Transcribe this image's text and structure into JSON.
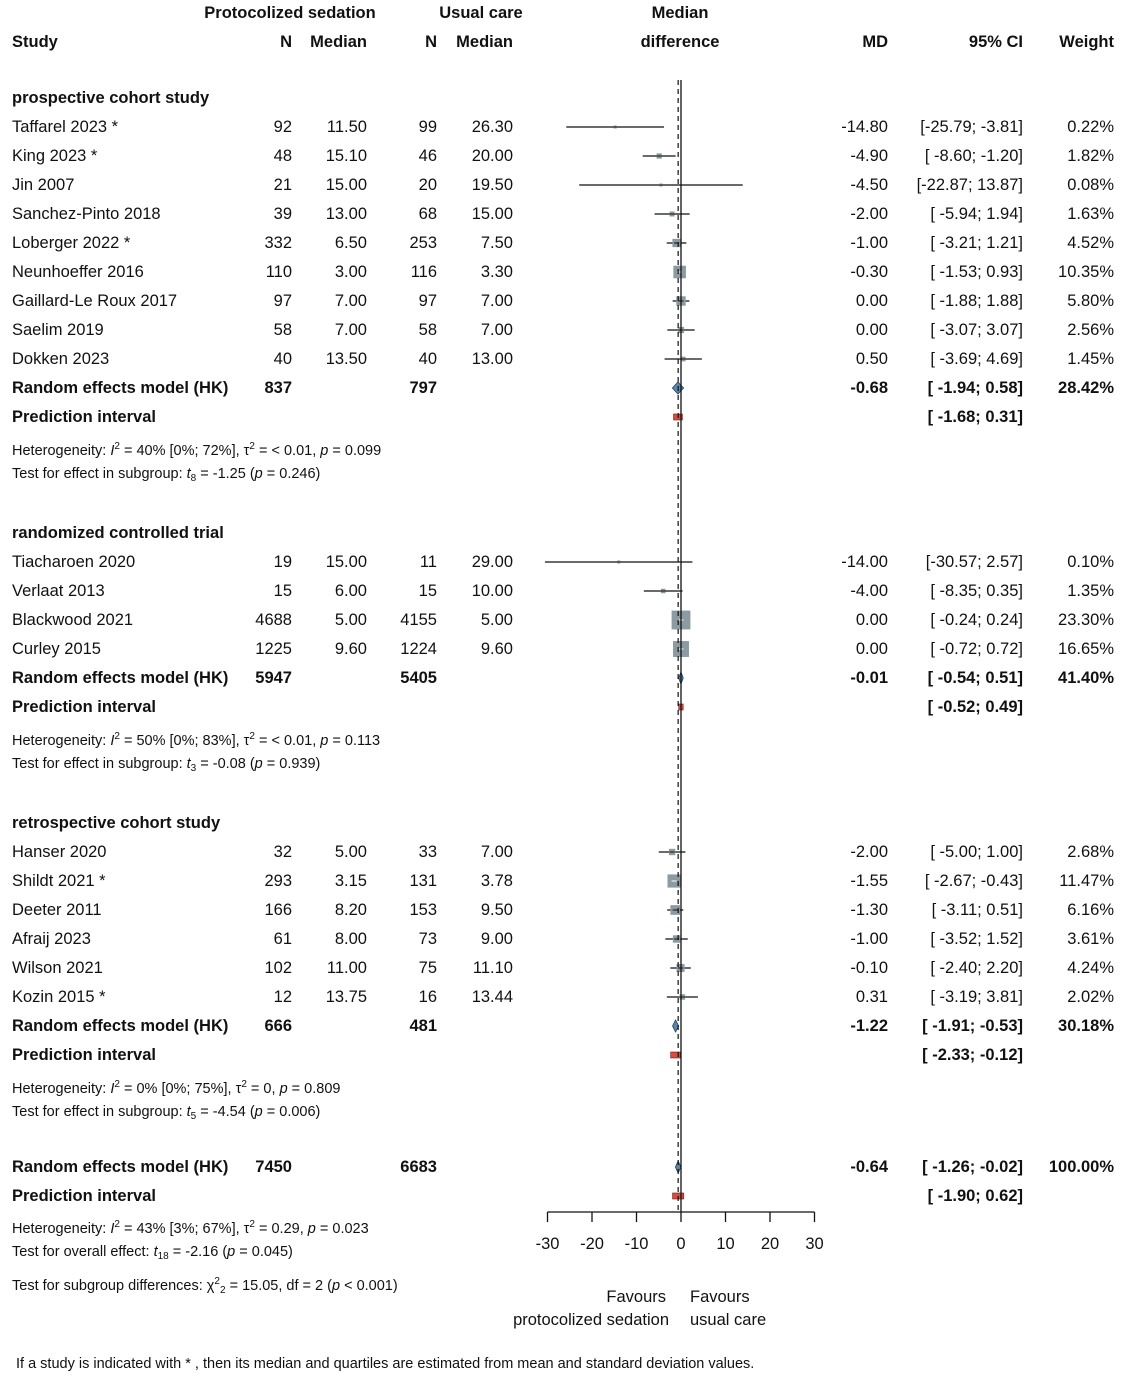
{
  "chart_data": {
    "type": "forest",
    "header": {
      "group1": "Protocolized sedation",
      "group2": "Usual care",
      "plot_line1": "Median",
      "plot_line2": "difference",
      "study": "Study",
      "n": "N",
      "median": "Median",
      "md": "MD",
      "ci": "95% CI",
      "weight": "Weight"
    },
    "axis": {
      "min": -30,
      "max": 30,
      "major": 10,
      "ticks": [
        "-30",
        "-20",
        "-10",
        "0",
        "10",
        "20",
        "30"
      ],
      "favours_left": [
        "Favours",
        "protocolized sedation"
      ],
      "favours_right": [
        "Favours",
        "usual care"
      ]
    },
    "groups": [
      {
        "name": "prospective cohort study",
        "studies": [
          {
            "label": "Taffarel 2023 *",
            "n1": "92",
            "med1": "11.50",
            "n2": "99",
            "med2": "26.30",
            "md": -14.8,
            "lo": -25.79,
            "hi": -3.81,
            "md_text": "-14.80",
            "ci_text": "[-25.79; -3.81]",
            "weight": 0.22,
            "weight_text": "0.22%"
          },
          {
            "label": "King 2023 *",
            "n1": "48",
            "med1": "15.10",
            "n2": "46",
            "med2": "20.00",
            "md": -4.9,
            "lo": -8.6,
            "hi": -1.2,
            "md_text": "-4.90",
            "ci_text": "[ -8.60; -1.20]",
            "weight": 1.82,
            "weight_text": "1.82%"
          },
          {
            "label": "Jin 2007",
            "n1": "21",
            "med1": "15.00",
            "n2": "20",
            "med2": "19.50",
            "md": -4.5,
            "lo": -22.87,
            "hi": 13.87,
            "md_text": "-4.50",
            "ci_text": "[-22.87; 13.87]",
            "weight": 0.08,
            "weight_text": "0.08%"
          },
          {
            "label": "Sanchez-Pinto 2018",
            "n1": "39",
            "med1": "13.00",
            "n2": "68",
            "med2": "15.00",
            "md": -2.0,
            "lo": -5.94,
            "hi": 1.94,
            "md_text": "-2.00",
            "ci_text": "[ -5.94;  1.94]",
            "weight": 1.63,
            "weight_text": "1.63%"
          },
          {
            "label": "Loberger 2022 *",
            "n1": "332",
            "med1": "6.50",
            "n2": "253",
            "med2": "7.50",
            "md": -1.0,
            "lo": -3.21,
            "hi": 1.21,
            "md_text": "-1.00",
            "ci_text": "[ -3.21;  1.21]",
            "weight": 4.52,
            "weight_text": "4.52%"
          },
          {
            "label": "Neunhoeffer 2016",
            "n1": "110",
            "med1": "3.00",
            "n2": "116",
            "med2": "3.30",
            "md": -0.3,
            "lo": -1.53,
            "hi": 0.93,
            "md_text": "-0.30",
            "ci_text": "[ -1.53;  0.93]",
            "weight": 10.35,
            "weight_text": "10.35%"
          },
          {
            "label": "Gaillard-Le Roux 2017",
            "n1": "97",
            "med1": "7.00",
            "n2": "97",
            "med2": "7.00",
            "md": 0.0,
            "lo": -1.88,
            "hi": 1.88,
            "md_text": "0.00",
            "ci_text": "[ -1.88;  1.88]",
            "weight": 5.8,
            "weight_text": "5.80%"
          },
          {
            "label": "Saelim 2019",
            "n1": "58",
            "med1": "7.00",
            "n2": "58",
            "med2": "7.00",
            "md": 0.0,
            "lo": -3.07,
            "hi": 3.07,
            "md_text": "0.00",
            "ci_text": "[ -3.07;  3.07]",
            "weight": 2.56,
            "weight_text": "2.56%"
          },
          {
            "label": "Dokken 2023",
            "n1": "40",
            "med1": "13.50",
            "n2": "40",
            "med2": "13.00",
            "md": 0.5,
            "lo": -3.69,
            "hi": 4.69,
            "md_text": "0.50",
            "ci_text": "[ -3.69;  4.69]",
            "weight": 1.45,
            "weight_text": "1.45%"
          }
        ],
        "pooled": {
          "label": "Random effects model (HK)",
          "n1": "837",
          "n2": "797",
          "md": -0.68,
          "lo": -1.94,
          "hi": 0.58,
          "md_text": "-0.68",
          "ci_text": "[ -1.94;  0.58]",
          "weight_text": "28.42%"
        },
        "prediction": {
          "label": "Prediction interval",
          "lo": -1.68,
          "hi": 0.31,
          "ci_text": "[ -1.68;  0.31]"
        },
        "heterogeneity": {
          "prefix": "Heterogeneity: ",
          "i2_sym": "I",
          "i2_sup": "2",
          "i2_val": " = 40% [0%; 72%], ",
          "tau_sym": "τ",
          "tau_sup": "2",
          "tau_val": " = < 0.01, ",
          "p_sym": "p",
          "p_val": " = 0.099"
        },
        "test": {
          "prefix": "Test for effect in subgroup: ",
          "t_sym": "t",
          "t_sub": "8",
          "t_val": " = -1.25 (",
          "p_sym": "p",
          "p_val": " = 0.246)"
        }
      },
      {
        "name": "randomized controlled trial",
        "studies": [
          {
            "label": "Tiacharoen 2020",
            "n1": "19",
            "med1": "15.00",
            "n2": "11",
            "med2": "29.00",
            "md": -14.0,
            "lo": -30.57,
            "hi": 2.57,
            "md_text": "-14.00",
            "ci_text": "[-30.57;  2.57]",
            "weight": 0.1,
            "weight_text": "0.10%"
          },
          {
            "label": "Verlaat 2013",
            "n1": "15",
            "med1": "6.00",
            "n2": "15",
            "med2": "10.00",
            "md": -4.0,
            "lo": -8.35,
            "hi": 0.35,
            "md_text": "-4.00",
            "ci_text": "[ -8.35;  0.35]",
            "weight": 1.35,
            "weight_text": "1.35%"
          },
          {
            "label": "Blackwood 2021",
            "n1": "4688",
            "med1": "5.00",
            "n2": "4155",
            "med2": "5.00",
            "md": 0.0,
            "lo": -0.24,
            "hi": 0.24,
            "md_text": "0.00",
            "ci_text": "[ -0.24;  0.24]",
            "weight": 23.3,
            "weight_text": "23.30%"
          },
          {
            "label": "Curley 2015",
            "n1": "1225",
            "med1": "9.60",
            "n2": "1224",
            "med2": "9.60",
            "md": 0.0,
            "lo": -0.72,
            "hi": 0.72,
            "md_text": "0.00",
            "ci_text": "[ -0.72;  0.72]",
            "weight": 16.65,
            "weight_text": "16.65%"
          }
        ],
        "pooled": {
          "label": "Random effects model (HK)",
          "n1": "5947",
          "n2": "5405",
          "md": -0.01,
          "lo": -0.54,
          "hi": 0.51,
          "md_text": "-0.01",
          "ci_text": "[ -0.54;  0.51]",
          "weight_text": "41.40%"
        },
        "prediction": {
          "label": "Prediction interval",
          "lo": -0.52,
          "hi": 0.49,
          "ci_text": "[ -0.52;  0.49]"
        },
        "heterogeneity": {
          "prefix": "Heterogeneity: ",
          "i2_sym": "I",
          "i2_sup": "2",
          "i2_val": " = 50% [0%; 83%], ",
          "tau_sym": "τ",
          "tau_sup": "2",
          "tau_val": " = < 0.01, ",
          "p_sym": "p",
          "p_val": " = 0.113"
        },
        "test": {
          "prefix": "Test for effect in subgroup: ",
          "t_sym": "t",
          "t_sub": "3",
          "t_val": " = -0.08 (",
          "p_sym": "p",
          "p_val": " = 0.939)"
        }
      },
      {
        "name": "retrospective cohort study",
        "studies": [
          {
            "label": "Hanser 2020",
            "n1": "32",
            "med1": "5.00",
            "n2": "33",
            "med2": "7.00",
            "md": -2.0,
            "lo": -5.0,
            "hi": 1.0,
            "md_text": "-2.00",
            "ci_text": "[ -5.00;  1.00]",
            "weight": 2.68,
            "weight_text": "2.68%"
          },
          {
            "label": "Shildt 2021 *",
            "n1": "293",
            "med1": "3.15",
            "n2": "131",
            "med2": "3.78",
            "md": -1.55,
            "lo": -2.67,
            "hi": -0.43,
            "md_text": "-1.55",
            "ci_text": "[ -2.67; -0.43]",
            "weight": 11.47,
            "weight_text": "11.47%"
          },
          {
            "label": "Deeter 2011",
            "n1": "166",
            "med1": "8.20",
            "n2": "153",
            "med2": "9.50",
            "md": -1.3,
            "lo": -3.11,
            "hi": 0.51,
            "md_text": "-1.30",
            "ci_text": "[ -3.11;  0.51]",
            "weight": 6.16,
            "weight_text": "6.16%"
          },
          {
            "label": "Afraij 2023",
            "n1": "61",
            "med1": "8.00",
            "n2": "73",
            "med2": "9.00",
            "md": -1.0,
            "lo": -3.52,
            "hi": 1.52,
            "md_text": "-1.00",
            "ci_text": "[ -3.52;  1.52]",
            "weight": 3.61,
            "weight_text": "3.61%"
          },
          {
            "label": "Wilson 2021",
            "n1": "102",
            "med1": "11.00",
            "n2": "75",
            "med2": "11.10",
            "md": -0.1,
            "lo": -2.4,
            "hi": 2.2,
            "md_text": "-0.10",
            "ci_text": "[ -2.40;  2.20]",
            "weight": 4.24,
            "weight_text": "4.24%"
          },
          {
            "label": "Kozin 2015 *",
            "n1": "12",
            "med1": "13.75",
            "n2": "16",
            "med2": "13.44",
            "md": 0.31,
            "lo": -3.19,
            "hi": 3.81,
            "md_text": "0.31",
            "ci_text": "[ -3.19;  3.81]",
            "weight": 2.02,
            "weight_text": "2.02%"
          }
        ],
        "pooled": {
          "label": "Random effects model (HK)",
          "n1": "666",
          "n2": "481",
          "md": -1.22,
          "lo": -1.91,
          "hi": -0.53,
          "md_text": "-1.22",
          "ci_text": "[ -1.91; -0.53]",
          "weight_text": "30.18%"
        },
        "prediction": {
          "label": "Prediction interval",
          "lo": -2.33,
          "hi": -0.12,
          "ci_text": "[ -2.33; -0.12]"
        },
        "heterogeneity": {
          "prefix": "Heterogeneity: ",
          "i2_sym": "I",
          "i2_sup": "2",
          "i2_val": " = 0% [0%; 75%], ",
          "tau_sym": "τ",
          "tau_sup": "2",
          "tau_val": " = 0, ",
          "p_sym": "p",
          "p_val": " = 0.809"
        },
        "test": {
          "prefix": "Test for effect in subgroup: ",
          "t_sym": "t",
          "t_sub": "5",
          "t_val": " = -4.54 (",
          "p_sym": "p",
          "p_val": " = 0.006)"
        }
      }
    ],
    "overall": {
      "pooled": {
        "label": "Random effects model (HK)",
        "n1": "7450",
        "n2": "6683",
        "md": -0.64,
        "lo": -1.26,
        "hi": -0.02,
        "md_text": "-0.64",
        "ci_text": "[ -1.26; -0.02]",
        "weight_text": "100.00%"
      },
      "prediction": {
        "label": "Prediction interval",
        "lo": -1.9,
        "hi": 0.62,
        "ci_text": "[ -1.90;  0.62]"
      },
      "heterogeneity": {
        "prefix": "Heterogeneity: ",
        "i2_sym": "I",
        "i2_sup": "2",
        "i2_val": " = 43% [3%; 67%], ",
        "tau_sym": "τ",
        "tau_sup": "2",
        "tau_val": " = 0.29, ",
        "p_sym": "p",
        "p_val": " = 0.023"
      },
      "test_overall": {
        "prefix": "Test for overall effect: ",
        "t_sym": "t",
        "t_sub": "18",
        "t_val": " = -2.16 (",
        "p_sym": "p",
        "p_val": " = 0.045)"
      },
      "test_subgroups": {
        "prefix": "Test for subgroup differences: ",
        "chi_sym": "χ",
        "chi_sup": "2",
        "chi_sub": "2",
        "chi_val": " = 15.05, df = 2 (",
        "p_sym": "p",
        "p_val": " < 0.001)"
      }
    },
    "footnote": "If a study is indicated with * , then its median and quartiles are estimated from mean and standard deviation values.",
    "colors": {
      "square": "#8c9aa1",
      "diamond": "#5a87b0",
      "prediction": "#d94b3f",
      "line": "#111111"
    }
  }
}
